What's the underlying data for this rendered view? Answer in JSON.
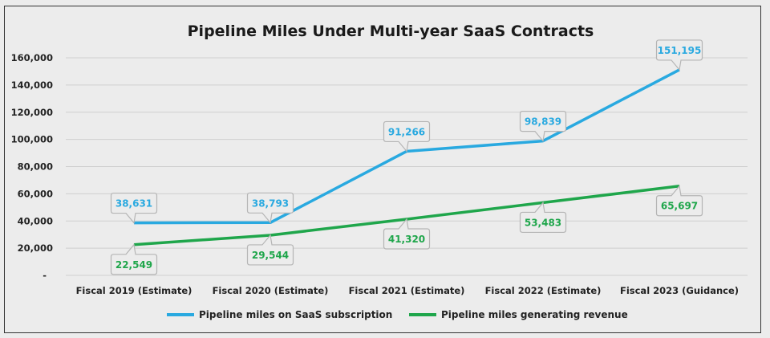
{
  "chart_data": {
    "type": "line",
    "title": "Pipeline Miles Under Multi-year SaaS Contracts",
    "categories": [
      "Fiscal 2019 (Estimate)",
      "Fiscal 2020 (Estimate)",
      "Fiscal 2021 (Estimate)",
      "Fiscal 2022 (Estimate)",
      "Fiscal 2023 (Guidance)"
    ],
    "ylim": [
      0,
      160000
    ],
    "yticks": [
      0,
      20000,
      40000,
      60000,
      80000,
      100000,
      120000,
      140000,
      160000
    ],
    "ytick_labels": [
      "-",
      "20,000",
      "40,000",
      "60,000",
      "80,000",
      "100,000",
      "120,000",
      "140,000",
      "160,000"
    ],
    "grid": true,
    "legend_position": "bottom",
    "series": [
      {
        "name": "Pipeline miles on SaaS subscription",
        "color": "#29a9e0",
        "values": [
          38631,
          38793,
          91266,
          98839,
          151195
        ],
        "labels": [
          "38,631",
          "38,793",
          "91,266",
          "98,839",
          "151,195"
        ],
        "label_position": "above"
      },
      {
        "name": "Pipeline miles generating revenue",
        "color": "#1fa64b",
        "values": [
          22549,
          29544,
          41320,
          53483,
          65697
        ],
        "labels": [
          "22,549",
          "29,544",
          "41,320",
          "53,483",
          "65,697"
        ],
        "label_position": "below"
      }
    ]
  }
}
